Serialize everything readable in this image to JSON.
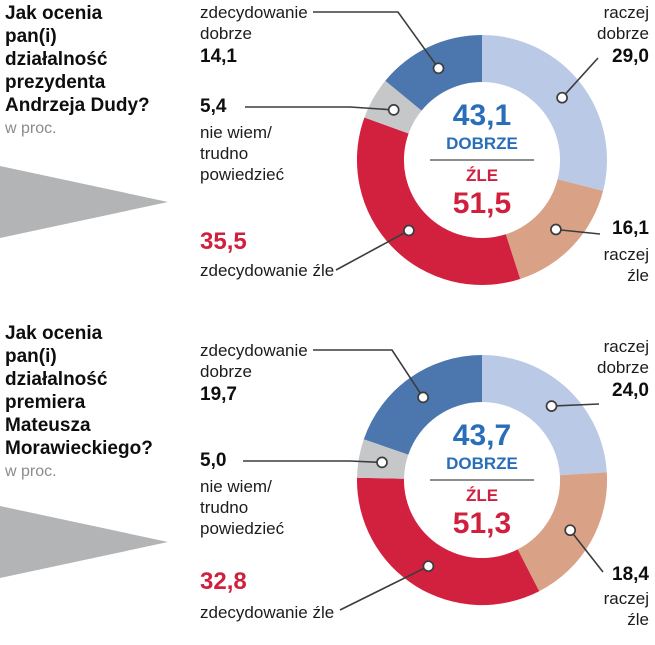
{
  "charts": [
    {
      "question": "Jak ocenia\npan(i)\ndziałalność\nprezydenta\nAndrzeja Dudy?",
      "note": "w proc.",
      "center": {
        "good_value": "43,1",
        "good_label": "DOBRZE",
        "bad_label": "ŹLE",
        "bad_value": "51,5"
      },
      "segments": {
        "zdecydowanie_dobrze": {
          "label": "zdecydowanie\ndobrze",
          "value": "14,1"
        },
        "raczej_dobrze": {
          "label": "raczej\ndobrze",
          "value": "29,0"
        },
        "nie_wiem": {
          "label": "nie wiem/\ntrudno\npowiedzieć",
          "value": "5,4"
        },
        "zdecydowanie_zle": {
          "label": "zdecydowanie źle",
          "value": "35,5"
        },
        "raczej_zle": {
          "label": "raczej\nźle",
          "value": "16,1"
        }
      }
    },
    {
      "question": "Jak ocenia\npan(i)\ndziałalność\npremiera\nMateusza\nMorawieckiego?",
      "note": "w proc.",
      "center": {
        "good_value": "43,7",
        "good_label": "DOBRZE",
        "bad_label": "ŹLE",
        "bad_value": "51,3"
      },
      "segments": {
        "zdecydowanie_dobrze": {
          "label": "zdecydowanie\ndobrze",
          "value": "19,7"
        },
        "raczej_dobrze": {
          "label": "raczej\ndobrze",
          "value": "24,0"
        },
        "nie_wiem": {
          "label": "nie wiem/\ntrudno\npowiedzieć",
          "value": "5,0"
        },
        "zdecydowanie_zle": {
          "label": "zdecydowanie źle",
          "value": "32,8"
        },
        "raczej_zle": {
          "label": "raczej\nźle",
          "value": "18,4"
        }
      }
    }
  ],
  "chart_data": [
    {
      "type": "pie",
      "donut": true,
      "title": "Jak ocenia pan(i) działalność prezydenta Andrzeja Dudy?",
      "unit": "proc.",
      "start_angle": 0,
      "clockwise": true,
      "categories": [
        "raczej dobrze",
        "raczej źle",
        "zdecydowanie źle",
        "nie wiem/trudno powiedzieć",
        "zdecydowanie dobrze"
      ],
      "values": [
        29.0,
        16.1,
        35.5,
        5.4,
        14.1
      ],
      "colors": [
        "#b9c9e6",
        "#d9a286",
        "#d2213f",
        "#c6c7c9",
        "#4b76ae"
      ],
      "summary": {
        "dobrze": 43.1,
        "zle": 51.5
      }
    },
    {
      "type": "pie",
      "donut": true,
      "title": "Jak ocenia pan(i) działalność premiera Mateusza Morawieckiego?",
      "unit": "proc.",
      "start_angle": 0,
      "clockwise": true,
      "categories": [
        "raczej dobrze",
        "raczej źle",
        "zdecydowanie źle",
        "nie wiem/trudno powiedzieć",
        "zdecydowanie dobrze"
      ],
      "values": [
        24.0,
        18.4,
        32.8,
        5.0,
        19.7
      ],
      "colors": [
        "#b9c9e6",
        "#d9a286",
        "#d2213f",
        "#c6c7c9",
        "#4b76ae"
      ],
      "summary": {
        "dobrze": 43.7,
        "zle": 51.3
      }
    }
  ]
}
